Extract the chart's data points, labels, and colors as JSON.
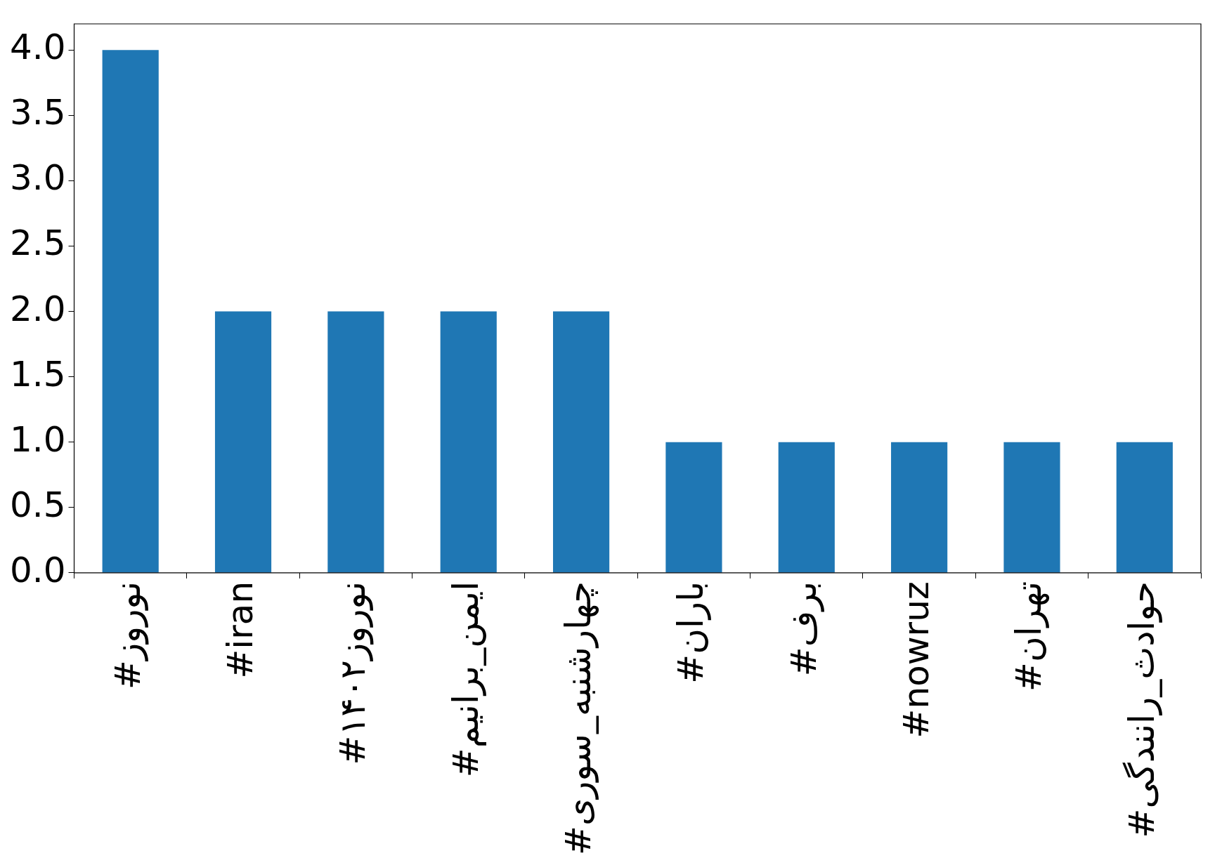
{
  "chart_data": {
    "type": "bar",
    "categories": [
      "#نوروز",
      "#iran",
      "#نوروز۱۴۰۲",
      "#ایمن_برانیم",
      "#چهارشنبه_سوری",
      "#باران",
      "#برف",
      "#nowruz",
      "#تهران",
      "#حوادث_رانندگی"
    ],
    "values": [
      4,
      2,
      2,
      2,
      2,
      1,
      1,
      1,
      1,
      1
    ],
    "color": "#1f77b4",
    "ylim": [
      0,
      4.2
    ],
    "yticks": [
      {
        "value": 0,
        "label": "0.0"
      },
      {
        "value": 0.5,
        "label": "0.5"
      },
      {
        "value": 1,
        "label": "1.0"
      },
      {
        "value": 1.5,
        "label": "1.5"
      },
      {
        "value": 2,
        "label": "2.0"
      },
      {
        "value": 2.5,
        "label": "2.5"
      },
      {
        "value": 3,
        "label": "3.0"
      },
      {
        "value": 3.5,
        "label": "3.5"
      },
      {
        "value": 4,
        "label": "4.0"
      }
    ],
    "grid": false,
    "legend": false
  }
}
